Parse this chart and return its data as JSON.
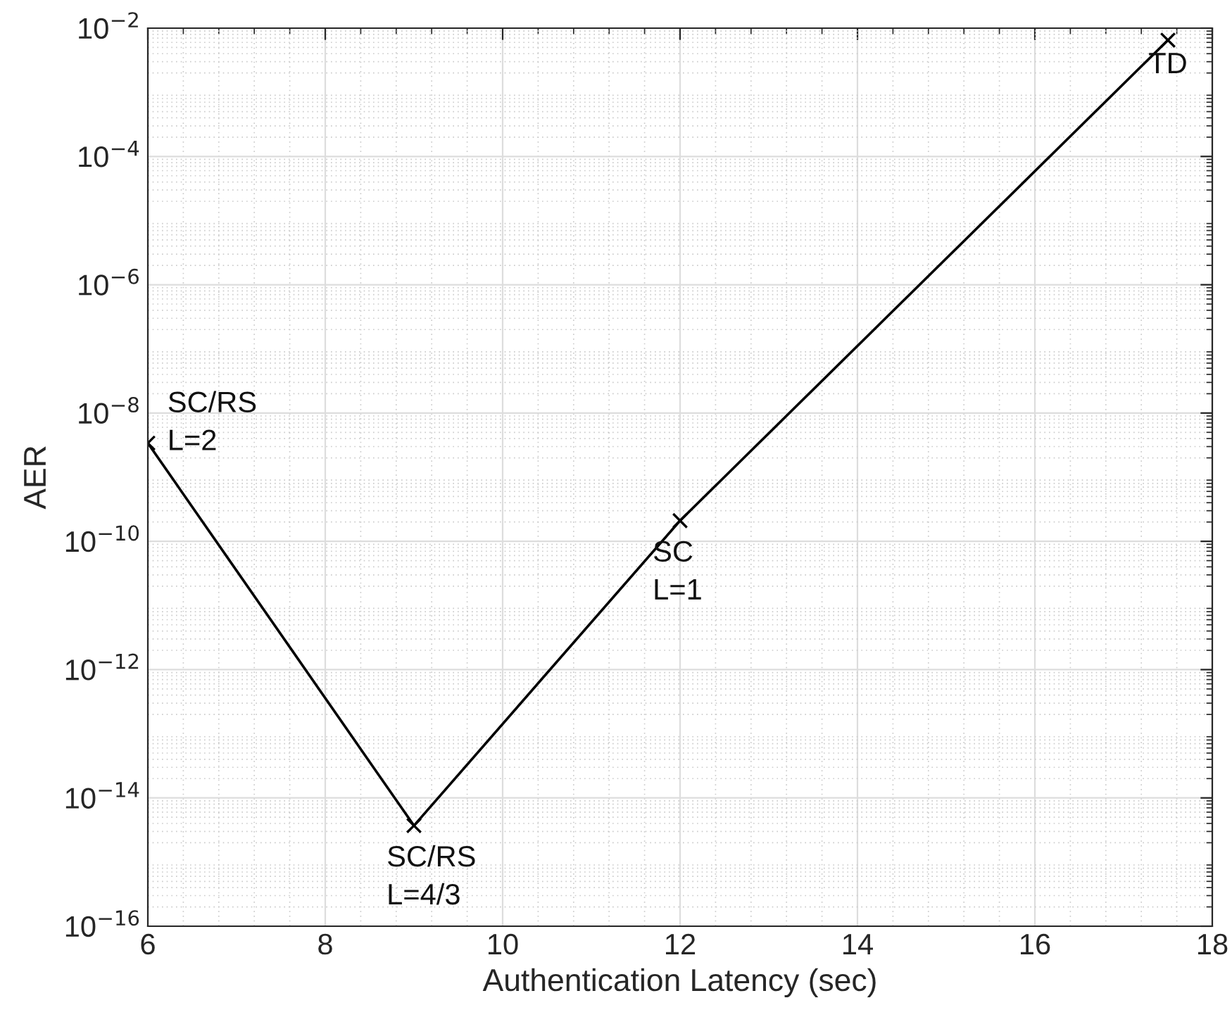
{
  "chart_data": {
    "type": "line",
    "xlabel": "Authentication Latency (sec)",
    "ylabel": "AER",
    "x": [
      6,
      9,
      12,
      17.5
    ],
    "series": [
      {
        "color": "#000000",
        "values": [
          3.4e-09,
          3.7e-15,
          2.1e-10,
          0.0065
        ]
      }
    ],
    "marker": "cross",
    "line_style": "solid",
    "log": "y",
    "grid": true,
    "xlim": [
      6,
      18
    ],
    "xticks": [
      6,
      8,
      10,
      12,
      14,
      16,
      18
    ],
    "ylim": [
      1e-16,
      0.01
    ],
    "yticks": [
      {
        "value": 1e-16,
        "label": "10$^{−16}$"
      },
      {
        "value": 1e-14,
        "label": "10$^{−14}$"
      },
      {
        "value": 1e-12,
        "label": "10$^{−12}$"
      },
      {
        "value": 1e-10,
        "label": "10$^{−10}$"
      },
      {
        "value": 1e-08,
        "label": "10$^{−8}$"
      },
      {
        "value": 1e-06,
        "label": "10$^{−6}$"
      },
      {
        "value": 0.0001,
        "label": "10$^{−4}$"
      },
      {
        "value": 0.01,
        "label": "10$^{−2}$"
      }
    ],
    "annotations": [
      {
        "text": "SC/RS\nL=2",
        "x": 6,
        "y": 3.4e-09
      },
      {
        "text": "SC/RS\nL=4/3",
        "x": 9,
        "y": 3.7e-15
      },
      {
        "text": "SC\nL=1",
        "x": 12,
        "y": 2.1e-10
      },
      {
        "text": "TD",
        "x": 17.5,
        "y": 0.0065
      }
    ]
  }
}
